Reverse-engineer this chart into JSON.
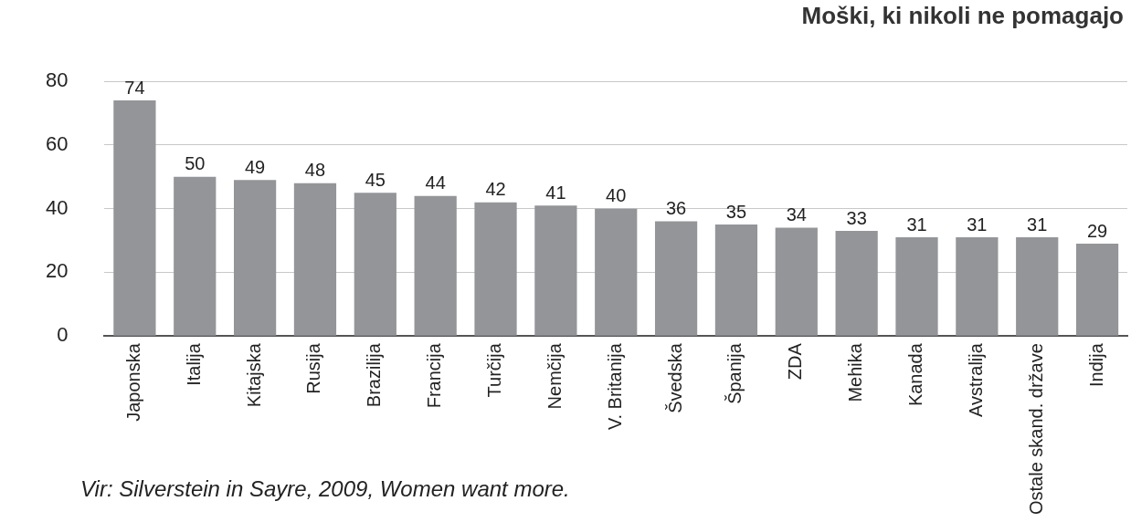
{
  "chart_data": {
    "type": "bar",
    "title": "Moški, ki nikoli ne pomagajo",
    "categories": [
      "Japonska",
      "Italija",
      "Kitajska",
      "Rusija",
      "Brazilija",
      "Francija",
      "Turčija",
      "Nemčija",
      "V. Britanija",
      "Švedska",
      "Španija",
      "ZDA",
      "Mehika",
      "Kanada",
      "Avstralija",
      "Ostale skand. države",
      "Indija"
    ],
    "values": [
      74,
      50,
      49,
      48,
      45,
      44,
      42,
      41,
      40,
      36,
      35,
      34,
      33,
      31,
      31,
      31,
      29
    ],
    "color": "#939598",
    "ylim": [
      0,
      80
    ],
    "yticks": [
      0,
      20,
      40,
      60,
      80
    ],
    "grid": "y",
    "data_labels": true,
    "legend": false,
    "annotations": [
      "Vir: Silverstein in Sayre, 2009, Women want more."
    ]
  }
}
